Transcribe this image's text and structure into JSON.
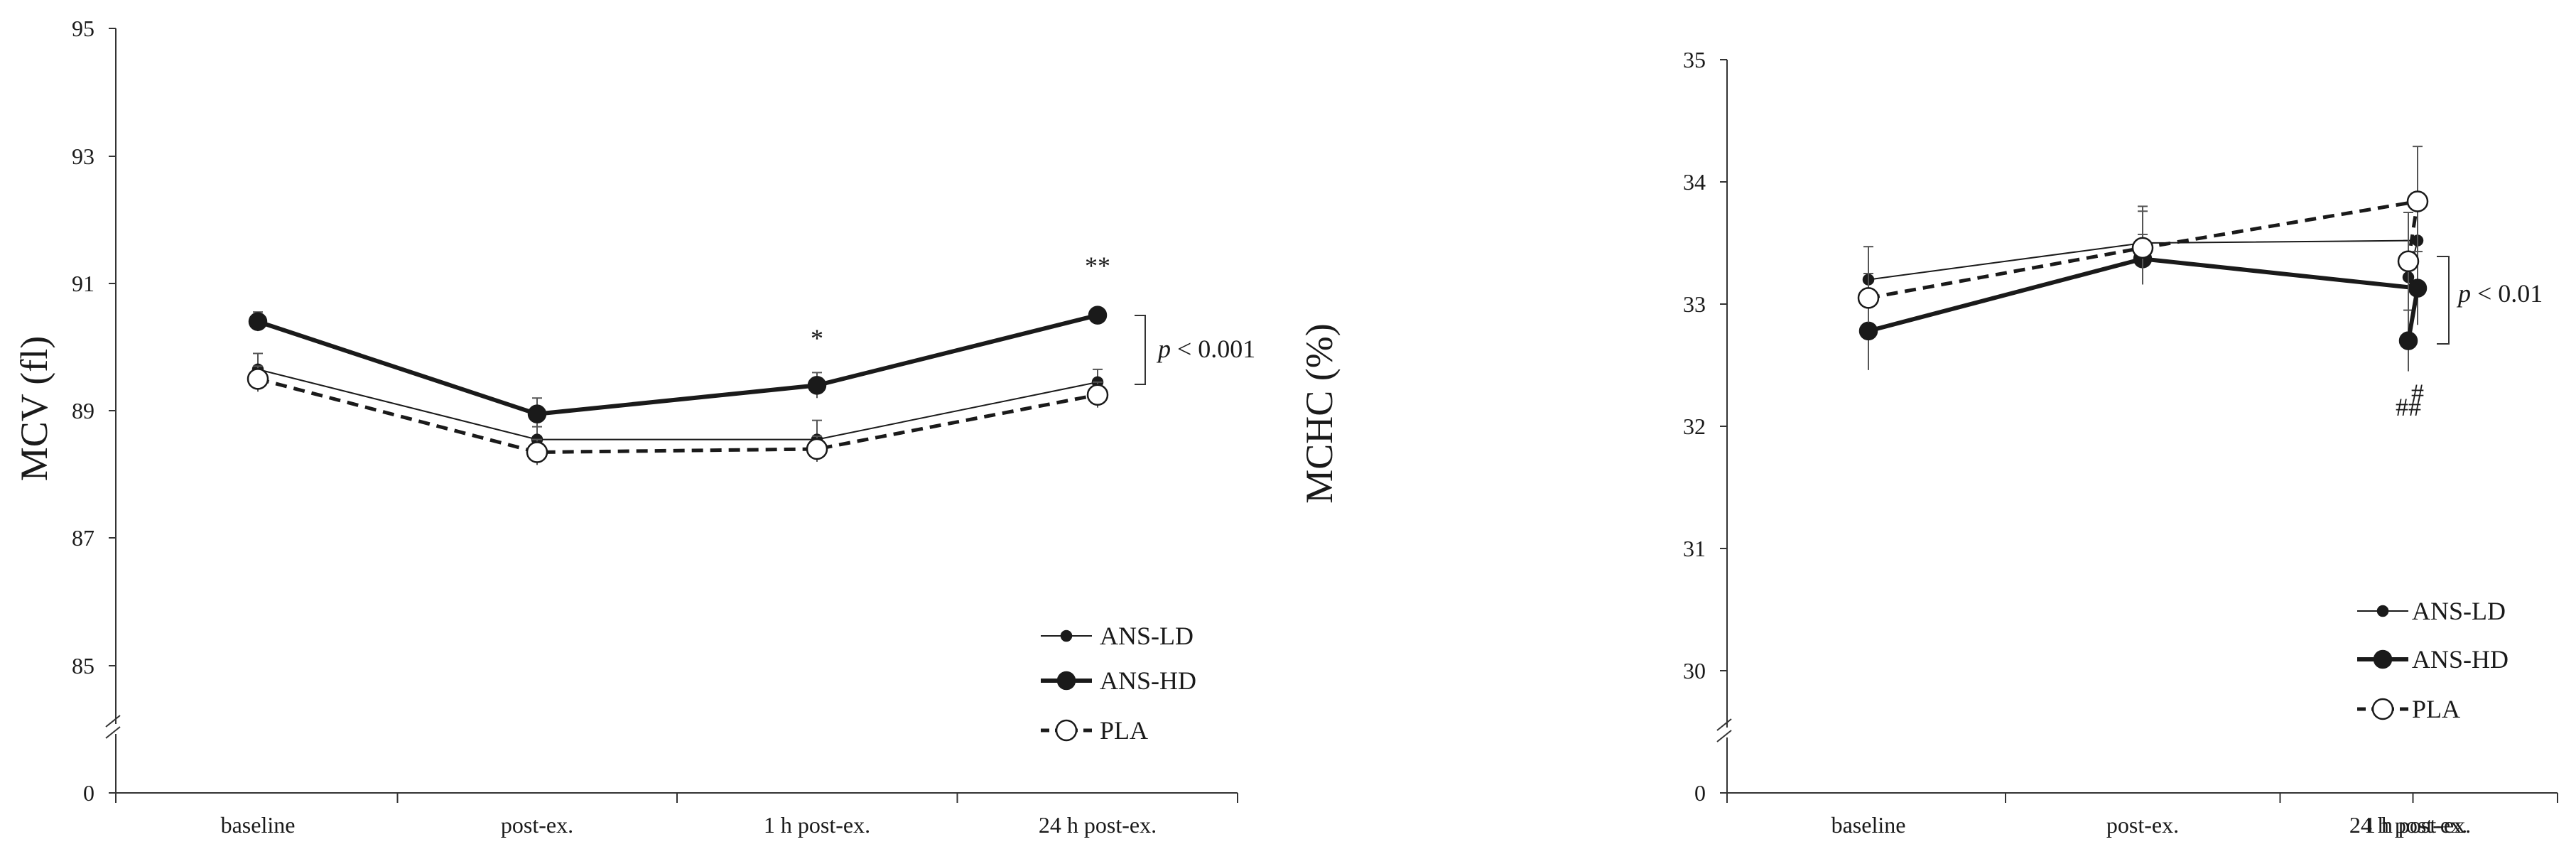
{
  "colors": {
    "ink": "#1a1a1a",
    "axis": "#333333",
    "marker_fill_open": "#ffffff"
  },
  "chart_data": [
    {
      "type": "line",
      "ylabel": "MCV (fl)",
      "xlabel": "",
      "categories": [
        "baseline",
        "post-ex.",
        "1 h post-ex.",
        "24 h post-ex."
      ],
      "yticks": [
        "95",
        "93",
        "91",
        "89",
        "87",
        "85",
        "0"
      ],
      "ylim": [
        84,
        95
      ],
      "axis_break": true,
      "series": [
        {
          "name": "ANS-LD",
          "style": "thin",
          "values": [
            89.65,
            88.55,
            88.55,
            89.45
          ],
          "errors": [
            0.25,
            0.2,
            0.3,
            0.2
          ]
        },
        {
          "name": "ANS-HD",
          "style": "thick",
          "values": [
            90.4,
            88.95,
            89.4,
            90.5
          ],
          "errors": [
            0.15,
            0.25,
            0.2,
            0.1
          ]
        },
        {
          "name": "PLA",
          "style": "dashed",
          "values": [
            89.5,
            88.35,
            88.4,
            89.25
          ],
          "errors": [
            0.2,
            0.2,
            0.2,
            0.2
          ]
        }
      ],
      "significance_marks": [
        {
          "category": "1 h post-ex.",
          "text": "*"
        },
        {
          "category": "24 h post-ex.",
          "text": "**"
        }
      ],
      "bracket_label": {
        "p": "p",
        "rest": " < 0.001"
      }
    },
    {
      "type": "line",
      "ylabel": "MCHC (%)",
      "xlabel": "",
      "categories": [
        "baseline",
        "post-ex.",
        "1 h post-ex.",
        "24 h post-ex."
      ],
      "yticks": [
        "35",
        "34",
        "33",
        "32",
        "31",
        "30",
        "0"
      ],
      "ylim": [
        29,
        35
      ],
      "axis_break": true,
      "series": [
        {
          "name": "ANS-LD",
          "style": "thin",
          "values": [
            33.2,
            33.5,
            33.52,
            33.22
          ],
          "errors": [
            0.27,
            0.3,
            0.35,
            0.3
          ]
        },
        {
          "name": "ANS-HD",
          "style": "thick",
          "values": [
            32.78,
            33.37,
            33.13,
            32.7
          ],
          "errors": [
            0.32,
            0.2,
            0.3,
            0.25
          ]
        },
        {
          "name": "PLA",
          "style": "dashed",
          "values": [
            33.05,
            33.46,
            33.84,
            33.35
          ],
          "errors": [
            0.2,
            0.3,
            0.45,
            0.4
          ]
        }
      ],
      "significance_marks": [
        {
          "category": "1 h post-ex.",
          "text": "#"
        },
        {
          "category": "24 h post-ex.",
          "text": "##"
        }
      ],
      "bracket_label": {
        "p": "p",
        "rest": " < 0.01"
      }
    }
  ]
}
